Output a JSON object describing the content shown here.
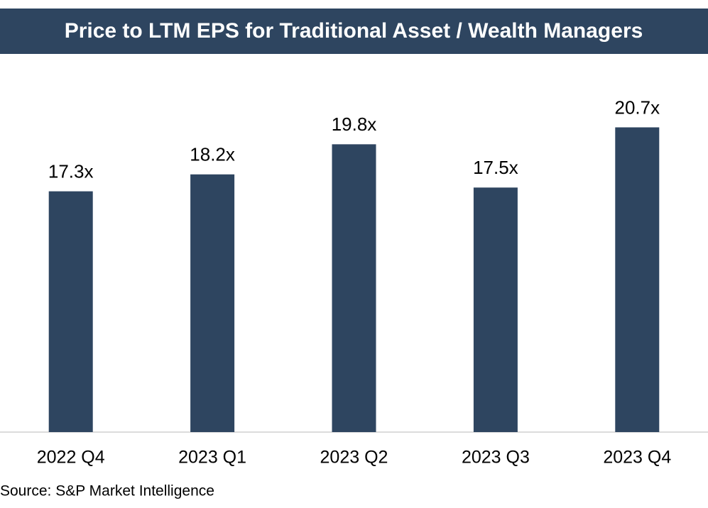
{
  "chart_data": {
    "type": "bar",
    "title": "Price to LTM EPS for Traditional Asset / Wealth Managers",
    "categories": [
      "2022 Q4",
      "2023 Q1",
      "2023 Q2",
      "2023 Q3",
      "2023 Q4"
    ],
    "values": [
      17.3,
      18.2,
      19.8,
      17.5,
      20.7
    ],
    "value_labels": [
      "17.3x",
      "18.2x",
      "19.8x",
      "17.5x",
      "20.7x"
    ],
    "color": "#2e4560",
    "ylim": [
      4.5,
      24
    ],
    "source": "Source: S&P Market Intelligence"
  }
}
